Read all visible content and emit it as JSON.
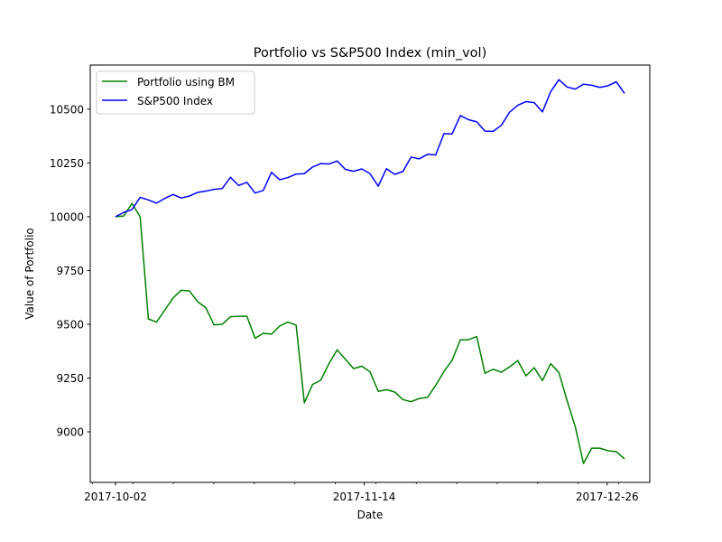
{
  "chart_data": {
    "type": "line",
    "title": "Portfolio vs S&P500 Index (min_vol)",
    "xlabel": "Date",
    "ylabel": "Value of Portfolio",
    "x_ticks": [
      "2017-10-02",
      "2017-11-14",
      "2017-12-26"
    ],
    "y_ticks": [
      9000,
      9250,
      9500,
      9750,
      10000,
      10250,
      10500
    ],
    "ylim": [
      8765,
      10705
    ],
    "x_start_date": "2017-10-02",
    "x_end_date": "2017-12-29",
    "legend_position": "upper-left",
    "grid": false,
    "series": [
      {
        "name": "Portfolio using BM",
        "color": "#008000",
        "values": [
          10000,
          10003,
          10062,
          10000,
          9525,
          9510,
          9566,
          9622,
          9658,
          9655,
          9605,
          9577,
          9497,
          9500,
          9535,
          9537,
          9537,
          9435,
          9458,
          9454,
          9492,
          9510,
          9496,
          9135,
          9220,
          9240,
          9317,
          9381,
          9337,
          9294,
          9305,
          9279,
          9188,
          9196,
          9185,
          9150,
          9140,
          9155,
          9160,
          9216,
          9280,
          9333,
          9428,
          9428,
          9443,
          9272,
          9291,
          9277,
          9302,
          9331,
          9260,
          9298,
          9238,
          9317,
          9276,
          9145,
          9024,
          8853,
          8924,
          8924,
          8912,
          8908,
          8874
        ]
      },
      {
        "name": "S&P500 Index",
        "color": "#0000ff",
        "values": [
          10000,
          10020,
          10033,
          10090,
          10078,
          10063,
          10085,
          10103,
          10087,
          10096,
          10113,
          10119,
          10127,
          10131,
          10183,
          10145,
          10160,
          10110,
          10122,
          10206,
          10172,
          10182,
          10198,
          10200,
          10231,
          10247,
          10245,
          10259,
          10220,
          10211,
          10222,
          10200,
          10142,
          10223,
          10197,
          10210,
          10277,
          10269,
          10290,
          10287,
          10386,
          10385,
          10470,
          10451,
          10441,
          10398,
          10397,
          10425,
          10486,
          10518,
          10535,
          10530,
          10487,
          10581,
          10637,
          10603,
          10593,
          10616,
          10611,
          10601,
          10609,
          10627,
          10573
        ]
      }
    ]
  }
}
